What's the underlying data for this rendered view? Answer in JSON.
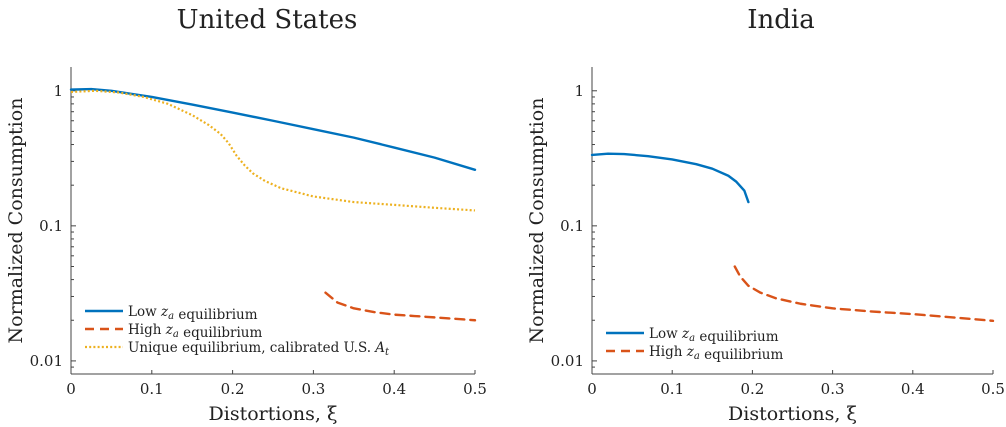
{
  "chart_data": [
    {
      "type": "line",
      "title": "United States",
      "xlabel": "Distortions, ξ",
      "ylabel": "Normalized Consumption",
      "xlim": [
        0,
        0.5
      ],
      "ylim": [
        0.008,
        1.5
      ],
      "yscale": "log",
      "xticks": [
        "0",
        "0.1",
        "0.2",
        "0.3",
        "0.4",
        "0.5"
      ],
      "yticks": [
        "0.01",
        "0.1",
        "1"
      ],
      "legend_position": "bottom-left",
      "series": [
        {
          "name": "Low z_a equilibrium",
          "color": "#0072BD",
          "style": "solid",
          "x": [
            0,
            0.025,
            0.05,
            0.1,
            0.15,
            0.2,
            0.25,
            0.3,
            0.35,
            0.4,
            0.45,
            0.5
          ],
          "y": [
            1.02,
            1.03,
            1.0,
            0.9,
            0.79,
            0.69,
            0.6,
            0.52,
            0.45,
            0.38,
            0.32,
            0.26
          ]
        },
        {
          "name": "High z_a equilibrium",
          "color": "#D95319",
          "style": "dashed",
          "x": [
            0.315,
            0.33,
            0.35,
            0.375,
            0.4,
            0.425,
            0.45,
            0.475,
            0.5
          ],
          "y": [
            0.032,
            0.027,
            0.0245,
            0.023,
            0.022,
            0.0215,
            0.021,
            0.0205,
            0.02
          ]
        },
        {
          "name": "Unique equilibrium, calibrated U.S. A_t",
          "color": "#EDB120",
          "style": "dotted",
          "x": [
            0,
            0.03,
            0.06,
            0.09,
            0.12,
            0.15,
            0.17,
            0.185,
            0.195,
            0.205,
            0.215,
            0.225,
            0.24,
            0.26,
            0.3,
            0.35,
            0.4,
            0.45,
            0.5
          ],
          "y": [
            0.98,
            1.0,
            0.97,
            0.9,
            0.8,
            0.66,
            0.56,
            0.48,
            0.41,
            0.33,
            0.28,
            0.245,
            0.215,
            0.19,
            0.165,
            0.15,
            0.143,
            0.136,
            0.13
          ]
        }
      ]
    },
    {
      "type": "line",
      "title": "India",
      "xlabel": "Distortions, ξ",
      "ylabel": "Normalized Consumption",
      "xlim": [
        0,
        0.5
      ],
      "ylim": [
        0.008,
        1.5
      ],
      "yscale": "log",
      "xticks": [
        "0",
        "0.1",
        "0.2",
        "0.3",
        "0.4",
        "0.5"
      ],
      "yticks": [
        "0.01",
        "0.1",
        "1"
      ],
      "legend_position": "bottom-left",
      "series": [
        {
          "name": "Low z_a equilibrium",
          "color": "#0072BD",
          "style": "solid",
          "x": [
            0,
            0.02,
            0.04,
            0.07,
            0.1,
            0.13,
            0.15,
            0.17,
            0.18,
            0.19,
            0.195
          ],
          "y": [
            0.335,
            0.342,
            0.34,
            0.328,
            0.31,
            0.286,
            0.265,
            0.235,
            0.212,
            0.182,
            0.15
          ]
        },
        {
          "name": "High z_a equilibrium",
          "color": "#D95319",
          "style": "dashed",
          "x": [
            0.178,
            0.185,
            0.195,
            0.21,
            0.23,
            0.26,
            0.3,
            0.35,
            0.4,
            0.45,
            0.5
          ],
          "y": [
            0.05,
            0.042,
            0.036,
            0.032,
            0.029,
            0.0265,
            0.0245,
            0.0232,
            0.0222,
            0.021,
            0.0198
          ]
        }
      ]
    }
  ]
}
